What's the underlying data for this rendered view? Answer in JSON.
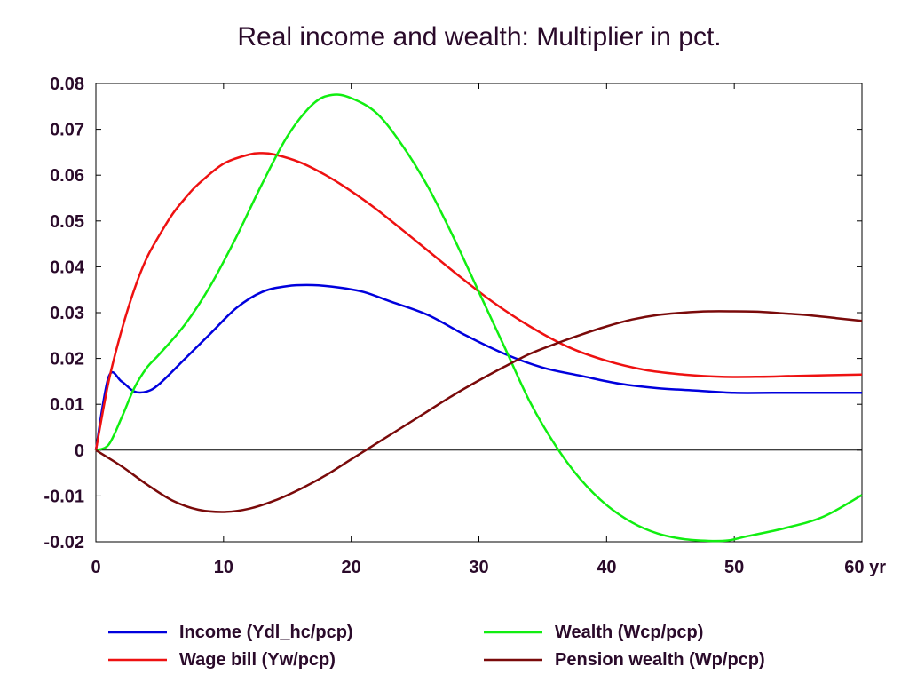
{
  "chart_data": {
    "type": "line",
    "title": "Real income and wealth: Multiplier in pct.",
    "xlabel": "",
    "ylabel": "",
    "xlim": [
      0,
      60
    ],
    "ylim": [
      -0.02,
      0.08
    ],
    "x_ticks": [
      0,
      10,
      20,
      30,
      40,
      50,
      60
    ],
    "x_tick_labels": [
      "0",
      "10",
      "20",
      "30",
      "40",
      "50",
      "60 yr"
    ],
    "y_ticks": [
      -0.02,
      -0.01,
      0,
      0.01,
      0.02,
      0.03,
      0.04,
      0.05,
      0.06,
      0.07,
      0.08
    ],
    "y_tick_labels": [
      "-0.02",
      "-0.01",
      "0",
      "0.01",
      "0.02",
      "0.03",
      "0.04",
      "0.05",
      "0.06",
      "0.07",
      "0.08"
    ],
    "grid": false,
    "zero_line": true,
    "legend_position": "bottom",
    "series": [
      {
        "name": "Income (Ydl_hc/pcp)",
        "color": "#0000dd",
        "x": [
          0,
          1,
          2,
          3,
          4,
          5,
          7,
          9,
          11,
          13,
          15,
          17,
          19,
          21,
          23,
          26,
          29,
          32,
          35,
          38,
          41,
          44,
          47,
          50,
          53,
          56,
          60
        ],
        "y": [
          0,
          0.016,
          0.015,
          0.0128,
          0.0128,
          0.0145,
          0.02,
          0.0255,
          0.031,
          0.0345,
          0.0358,
          0.036,
          0.0355,
          0.0345,
          0.0325,
          0.0295,
          0.025,
          0.021,
          0.018,
          0.0162,
          0.0145,
          0.0135,
          0.013,
          0.0125,
          0.0125,
          0.0125,
          0.0125
        ]
      },
      {
        "name": "Wage bill (Yw/pcp)",
        "color": "#ee1111",
        "x": [
          0,
          1,
          2,
          3,
          4,
          5,
          6,
          7,
          8,
          10,
          12,
          13,
          14,
          16,
          18,
          20,
          22,
          25,
          28,
          31,
          34,
          37,
          40,
          43,
          46,
          49,
          52,
          55,
          60
        ],
        "y": [
          0,
          0.015,
          0.026,
          0.035,
          0.042,
          0.047,
          0.0515,
          0.055,
          0.058,
          0.0625,
          0.0645,
          0.0648,
          0.0645,
          0.0628,
          0.06,
          0.0565,
          0.0525,
          0.0458,
          0.039,
          0.0325,
          0.027,
          0.0225,
          0.0195,
          0.0175,
          0.0165,
          0.016,
          0.016,
          0.0162,
          0.0165
        ]
      },
      {
        "name": "Wealth (Wcp/pcp)",
        "color": "#11ee11",
        "x": [
          0,
          1,
          2,
          3,
          4,
          5,
          7,
          9,
          11,
          13,
          15,
          17,
          18.5,
          20,
          22,
          24,
          26,
          28,
          30,
          32,
          34,
          36,
          38,
          40,
          42,
          44,
          46,
          48,
          49.5,
          51,
          54,
          57,
          60
        ],
        "y": [
          0,
          0.0012,
          0.007,
          0.0135,
          0.018,
          0.021,
          0.0275,
          0.036,
          0.0465,
          0.058,
          0.0685,
          0.0755,
          0.0775,
          0.0768,
          0.0735,
          0.0665,
          0.0575,
          0.0465,
          0.0345,
          0.0225,
          0.0105,
          0.001,
          -0.0065,
          -0.012,
          -0.0158,
          -0.0182,
          -0.0194,
          -0.0198,
          -0.0197,
          -0.0188,
          -0.017,
          -0.0145,
          -0.0098
        ]
      },
      {
        "name": "Pension wealth (Wp/pcp)",
        "color": "#7a0a0a",
        "x": [
          0,
          2,
          4,
          6,
          8,
          10,
          12,
          14,
          16,
          18,
          20,
          22,
          24,
          26,
          28,
          30,
          32,
          34,
          36,
          38,
          40,
          42,
          44,
          46,
          48,
          50,
          52,
          54,
          56,
          58,
          60
        ],
        "y": [
          0,
          -0.0035,
          -0.0075,
          -0.011,
          -0.013,
          -0.0135,
          -0.0128,
          -0.011,
          -0.0085,
          -0.0055,
          -0.002,
          0.0015,
          0.005,
          0.0085,
          0.012,
          0.0152,
          0.0182,
          0.021,
          0.0232,
          0.0252,
          0.027,
          0.0285,
          0.0295,
          0.03,
          0.0303,
          0.0303,
          0.0302,
          0.0298,
          0.0294,
          0.0288,
          0.0282
        ]
      }
    ]
  }
}
